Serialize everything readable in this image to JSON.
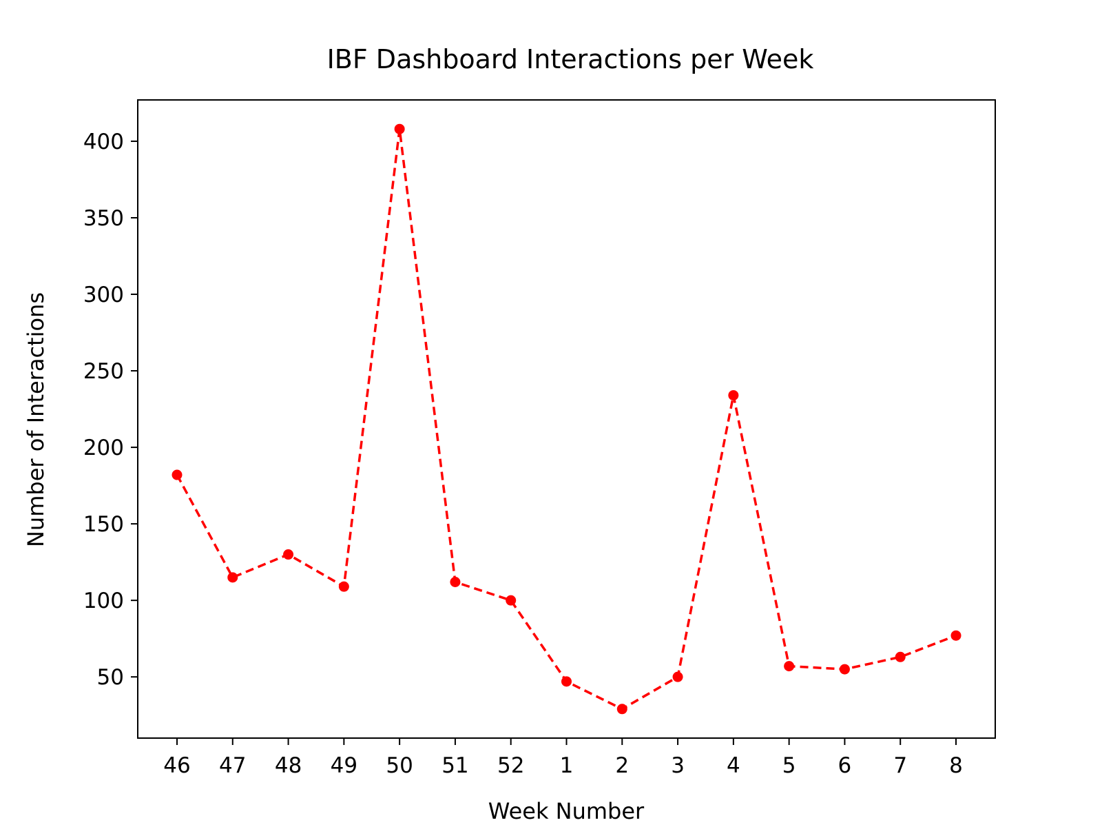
{
  "chart_data": {
    "type": "line",
    "title": "IBF Dashboard Interactions per Week",
    "xlabel": "Week Number",
    "ylabel": "Number of Interactions",
    "categories": [
      "46",
      "47",
      "48",
      "49",
      "50",
      "51",
      "52",
      "1",
      "2",
      "3",
      "4",
      "5",
      "6",
      "7",
      "8"
    ],
    "series": [
      {
        "values": [
          182,
          115,
          130,
          109,
          408,
          112,
          100,
          47,
          29,
          50,
          234,
          57,
          55,
          63,
          77
        ],
        "color": "#ff0000",
        "line_style": "dashed",
        "marker": "circle"
      }
    ],
    "yticks": [
      50,
      100,
      150,
      200,
      250,
      300,
      350,
      400
    ],
    "ylim": [
      10,
      427
    ],
    "grid": false,
    "legend": "none"
  }
}
